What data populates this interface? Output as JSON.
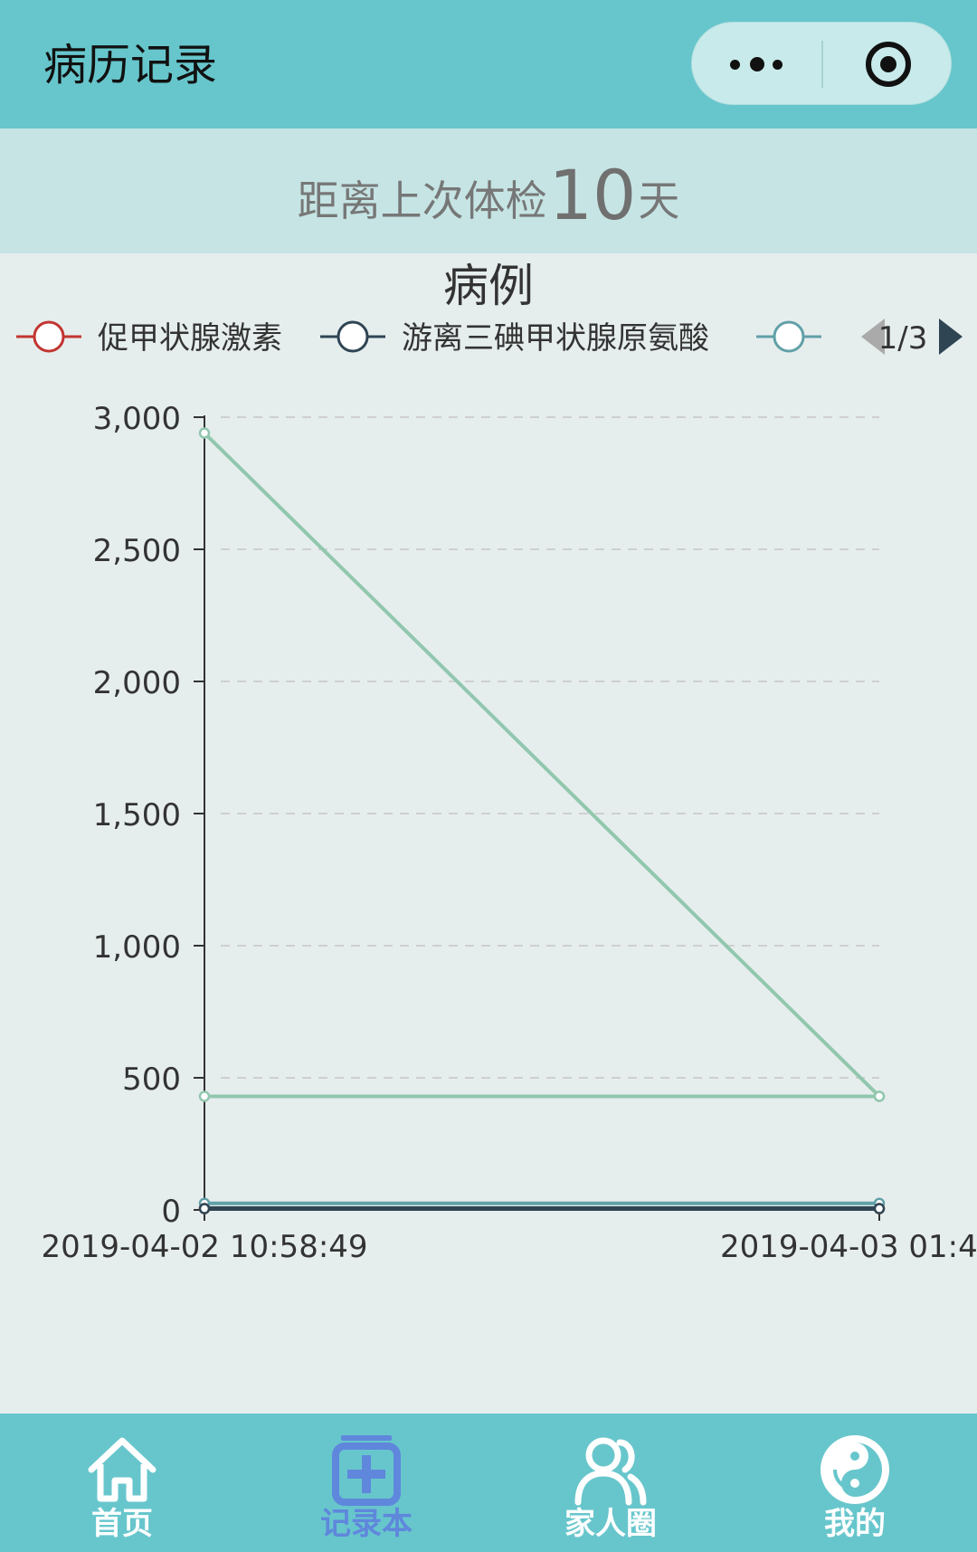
{
  "header": {
    "title": "病历记录"
  },
  "banner": {
    "prefix": "距离上次体检",
    "days": "10",
    "suffix": "天"
  },
  "chart_data": {
    "type": "line",
    "title": "病例",
    "legend": {
      "placement": "top",
      "items": [
        "促甲状腺激素",
        "游离三碘甲状腺原氨酸",
        ""
      ],
      "page": "1/3"
    },
    "x": [
      "2019-04-02 10:58:49",
      "2019-04-03 01:4"
    ],
    "ylim": [
      0,
      3000
    ],
    "yticks": [
      0,
      500,
      1000,
      1500,
      2000,
      2500,
      3000
    ],
    "ytick_labels": [
      "0",
      "500",
      "1,000",
      "1,500",
      "2,000",
      "2,500",
      "3,000"
    ],
    "grid": true,
    "series": [
      {
        "name": "促甲状腺激素",
        "color": "#c23531",
        "values": [
          5,
          5
        ]
      },
      {
        "name": "游离三碘甲状腺原氨酸",
        "color": "#2f4554",
        "values": [
          5,
          5
        ]
      },
      {
        "name": "",
        "color": "#61a0a8",
        "values": [
          25,
          25
        ]
      },
      {
        "name": "",
        "color": "#91c7ae",
        "values": [
          2940,
          430
        ]
      },
      {
        "name": "",
        "color": "#91c7ae",
        "values": [
          430,
          430
        ]
      }
    ]
  },
  "tabbar": {
    "items": [
      {
        "label": "首页",
        "icon": "home-icon"
      },
      {
        "label": "记录本",
        "icon": "record-book-icon"
      },
      {
        "label": "家人圈",
        "icon": "family-icon"
      },
      {
        "label": "我的",
        "icon": "profile-icon"
      }
    ],
    "active_color": "#5f87dc"
  }
}
